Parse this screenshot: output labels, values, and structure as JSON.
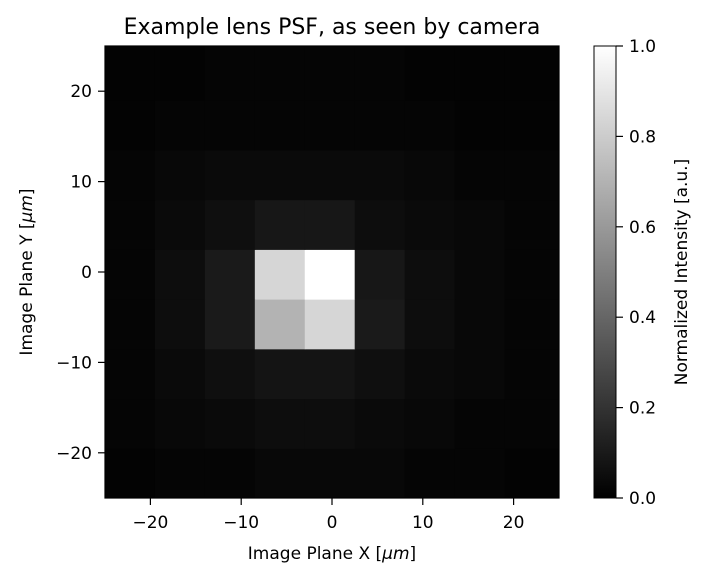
{
  "chart_data": {
    "type": "heatmap",
    "title": "Example lens PSF, as seen by camera",
    "xlabel": "Image Plane X [",
    "xlabel_unit": "μm",
    "xlabel_end": "]",
    "ylabel": "Image Plane Y [",
    "ylabel_unit": "μm",
    "ylabel_end": "]",
    "colorbar_label": "Normalized Intensity [a.u.]",
    "colormap": "gray",
    "xlim": [
      -25,
      25
    ],
    "ylim": [
      -25,
      25
    ],
    "clim": [
      0,
      1
    ],
    "grid": false,
    "x_edges": [
      -25,
      -19.5,
      -14,
      -8.5,
      -3,
      2.5,
      8,
      13.5,
      19,
      25
    ],
    "y_edges": [
      -25,
      -19.5,
      -14,
      -8.5,
      -3,
      2.5,
      8,
      13.5,
      19,
      25
    ],
    "values": [
      [
        0.01,
        0.02,
        0.02,
        0.03,
        0.03,
        0.03,
        0.02,
        0.02,
        0.01
      ],
      [
        0.02,
        0.03,
        0.04,
        0.05,
        0.05,
        0.04,
        0.03,
        0.02,
        0.02
      ],
      [
        0.02,
        0.04,
        0.06,
        0.08,
        0.08,
        0.06,
        0.04,
        0.03,
        0.02
      ],
      [
        0.02,
        0.05,
        0.1,
        0.7,
        0.84,
        0.1,
        0.05,
        0.03,
        0.02
      ],
      [
        0.02,
        0.05,
        0.1,
        0.84,
        1.0,
        0.09,
        0.05,
        0.03,
        0.02
      ],
      [
        0.02,
        0.04,
        0.06,
        0.09,
        0.09,
        0.05,
        0.04,
        0.03,
        0.02
      ],
      [
        0.02,
        0.03,
        0.04,
        0.04,
        0.04,
        0.04,
        0.03,
        0.02,
        0.02
      ],
      [
        0.01,
        0.02,
        0.02,
        0.02,
        0.02,
        0.02,
        0.02,
        0.01,
        0.01
      ],
      [
        0.01,
        0.01,
        0.02,
        0.02,
        0.02,
        0.02,
        0.01,
        0.01,
        0.01
      ]
    ],
    "x_ticks": [
      -20,
      -10,
      0,
      10,
      20
    ],
    "x_tick_labels": [
      "−20",
      "−10",
      "0",
      "10",
      "20"
    ],
    "y_ticks": [
      -20,
      -10,
      0,
      10,
      20
    ],
    "y_tick_labels": [
      "−20",
      "−10",
      "0",
      "10",
      "20"
    ],
    "colorbar_ticks": [
      0,
      0.2,
      0.4,
      0.6,
      0.8,
      1.0
    ],
    "colorbar_tick_labels": [
      "0.0",
      "0.2",
      "0.4",
      "0.6",
      "0.8",
      "1.0"
    ]
  }
}
